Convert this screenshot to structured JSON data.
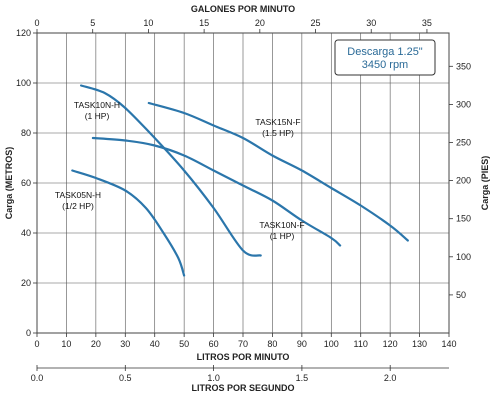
{
  "chart_data": {
    "type": "line",
    "box": {
      "line1": "Descarga 1.25\"",
      "line2": "3450 rpm"
    },
    "axes": {
      "bottom": {
        "label": "LITROS POR MINUTO",
        "range": [
          0,
          140
        ],
        "ticks": [
          "0",
          "10",
          "20",
          "30",
          "40",
          "50",
          "60",
          "70",
          "80",
          "90",
          "100",
          "110",
          "120",
          "130",
          "140"
        ]
      },
      "top": {
        "label": "GALONES POR MINUTO",
        "range": [
          0,
          36.98
        ],
        "ticks": [
          "0",
          "5",
          "10",
          "15",
          "20",
          "25",
          "30",
          "35"
        ]
      },
      "left": {
        "label": "Carga (METROS)",
        "range": [
          0,
          120
        ],
        "ticks": [
          "0",
          "20",
          "40",
          "60",
          "80",
          "100",
          "120"
        ]
      },
      "right": {
        "label": "Carga (PIES)",
        "range": [
          0,
          393.7
        ],
        "ticks": [
          "50",
          "100",
          "150",
          "200",
          "250",
          "300",
          "350"
        ]
      },
      "second_bottom": {
        "label": "LITROS POR SEGUNDO",
        "range": [
          0,
          2.333
        ],
        "ticks": [
          "0.0",
          "0.5",
          "1.0",
          "1.5",
          "2.0"
        ]
      }
    },
    "grid": true,
    "series_color": "#2b76ab",
    "series": [
      {
        "label_lines": [
          "TASK05N-H",
          "(1/2 HP)"
        ],
        "points": [
          [
            12,
            65
          ],
          [
            20,
            62
          ],
          [
            30,
            57
          ],
          [
            37,
            50
          ],
          [
            43,
            40
          ],
          [
            48,
            30
          ],
          [
            50,
            23
          ]
        ]
      },
      {
        "label_lines": [
          "TASK10N-H",
          "(1 HP)"
        ],
        "points": [
          [
            15,
            99
          ],
          [
            23,
            96
          ],
          [
            30,
            90
          ],
          [
            40,
            78
          ],
          [
            50,
            65
          ],
          [
            60,
            50
          ],
          [
            70,
            33
          ],
          [
            76,
            31
          ]
        ]
      },
      {
        "label_lines": [
          "TASK10N-F",
          "(1 HP)"
        ],
        "points": [
          [
            19,
            78
          ],
          [
            30,
            77
          ],
          [
            40,
            75
          ],
          [
            50,
            71
          ],
          [
            60,
            65
          ],
          [
            70,
            59
          ],
          [
            80,
            53
          ],
          [
            90,
            45
          ],
          [
            100,
            38
          ],
          [
            103,
            35
          ]
        ]
      },
      {
        "label_lines": [
          "TASK15N-F",
          "(1.5 HP)"
        ],
        "points": [
          [
            38,
            92
          ],
          [
            50,
            88
          ],
          [
            60,
            83
          ],
          [
            70,
            78
          ],
          [
            80,
            71
          ],
          [
            90,
            65
          ],
          [
            100,
            58
          ],
          [
            110,
            51
          ],
          [
            120,
            43
          ],
          [
            126,
            37
          ]
        ]
      }
    ]
  }
}
